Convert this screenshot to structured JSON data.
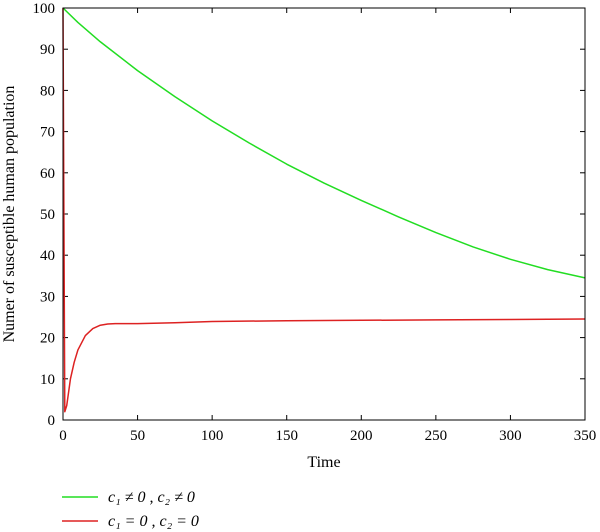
{
  "chart_data": {
    "type": "line",
    "title": "",
    "xlabel": "Time",
    "ylabel": "Numer of susceptible human population",
    "xlim": [
      0,
      350
    ],
    "ylim": [
      0,
      100
    ],
    "xticks": [
      0,
      50,
      100,
      150,
      200,
      250,
      300,
      350
    ],
    "yticks": [
      0,
      10,
      20,
      30,
      40,
      50,
      60,
      70,
      80,
      90,
      100
    ],
    "grid": false,
    "legend_position": "bottom-left, below plot",
    "series": [
      {
        "name": "c₁ ≠ 0 , c₂ ≠ 0",
        "color": "#22dd22",
        "x": [
          0,
          10,
          25,
          50,
          75,
          100,
          125,
          150,
          175,
          200,
          225,
          250,
          275,
          300,
          325,
          350
        ],
        "y": [
          100,
          96.5,
          91.8,
          84.8,
          78.5,
          72.6,
          67.2,
          62.1,
          57.5,
          53.3,
          49.3,
          45.5,
          42.0,
          39.0,
          36.5,
          34.5
        ]
      },
      {
        "name": "c₁ = 0 , c₂ = 0",
        "color": "#dd2222",
        "x": [
          0,
          0.6,
          1.2,
          2.5,
          5,
          7.5,
          10,
          15,
          20,
          25,
          30,
          35,
          50,
          75,
          100,
          150,
          200,
          250,
          300,
          350
        ],
        "y": [
          100,
          50,
          2,
          3.5,
          10,
          14,
          17,
          20.5,
          22.2,
          23.0,
          23.3,
          23.4,
          23.4,
          23.6,
          23.9,
          24.1,
          24.2,
          24.3,
          24.4,
          24.5
        ]
      }
    ]
  }
}
